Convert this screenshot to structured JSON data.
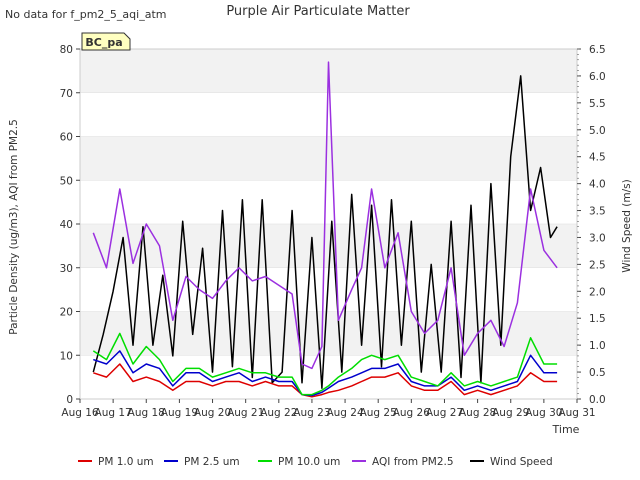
{
  "header": {
    "no_data_note": "No data for f_pm2_5_aqi_atm"
  },
  "chart_data": {
    "type": "line",
    "title": "Purple Air Particulate Matter",
    "xlabel": "Time",
    "ylabel": "Particle Density (ug/m3), AQI from PM2.5",
    "y2label": "Wind Speed (m/s)",
    "site_label": "BC_pa",
    "x_ticks": [
      "Aug 16",
      "Aug 17",
      "Aug 18",
      "Aug 19",
      "Aug 20",
      "Aug 21",
      "Aug 22",
      "Aug 23",
      "Aug 24",
      "Aug 25",
      "Aug 26",
      "Aug 27",
      "Aug 28",
      "Aug 29",
      "Aug 30",
      "Aug 31"
    ],
    "xlim": [
      0,
      15
    ],
    "ylim": [
      0,
      80
    ],
    "y_ticks": [
      "0",
      "10",
      "20",
      "30",
      "40",
      "50",
      "60",
      "70",
      "80"
    ],
    "y2lim": [
      0,
      6.5
    ],
    "y2_ticks": [
      "0.0",
      "0.5",
      "1.0",
      "1.5",
      "2.0",
      "2.5",
      "3.0",
      "3.5",
      "4.0",
      "4.5",
      "5.0",
      "5.5",
      "6.0",
      "6.5"
    ],
    "grid": "horizontal bands",
    "legend_position": "bottom",
    "series": [
      {
        "name": "PM 1.0 um",
        "color": "#dd0000",
        "axis": "left",
        "x": [
          0.4,
          0.8,
          1.2,
          1.6,
          2.0,
          2.4,
          2.8,
          3.2,
          3.6,
          4.0,
          4.4,
          4.8,
          5.2,
          5.6,
          6.0,
          6.4,
          6.7,
          7.0,
          7.3,
          7.5,
          7.8,
          8.2,
          8.5,
          8.8,
          9.2,
          9.6,
          10.0,
          10.4,
          10.8,
          11.2,
          11.6,
          12.0,
          12.4,
          12.8,
          13.2,
          13.6,
          14.0,
          14.4
        ],
        "y": [
          6,
          5,
          8,
          4,
          5,
          4,
          2,
          4,
          4,
          3,
          4,
          4,
          3,
          4,
          3,
          3,
          1,
          0.5,
          1,
          1.5,
          2,
          3,
          4,
          5,
          5,
          6,
          3,
          2,
          2,
          4,
          1,
          2,
          1,
          2,
          3,
          6,
          4,
          4
        ]
      },
      {
        "name": "PM 2.5 um",
        "color": "#0000cc",
        "axis": "left",
        "x": [
          0.4,
          0.8,
          1.2,
          1.6,
          2.0,
          2.4,
          2.8,
          3.2,
          3.6,
          4.0,
          4.4,
          4.8,
          5.2,
          5.6,
          6.0,
          6.4,
          6.7,
          7.0,
          7.3,
          7.5,
          7.8,
          8.2,
          8.5,
          8.8,
          9.2,
          9.6,
          10.0,
          10.4,
          10.8,
          11.2,
          11.6,
          12.0,
          12.4,
          12.8,
          13.2,
          13.6,
          14.0,
          14.4
        ],
        "y": [
          9,
          8,
          11,
          6,
          8,
          7,
          3,
          6,
          6,
          4,
          5,
          6,
          4,
          5,
          4,
          4,
          1,
          0.8,
          1.5,
          2.5,
          4,
          5,
          6,
          7,
          7,
          8,
          4,
          3,
          3,
          5,
          2,
          3,
          2,
          3,
          4,
          10,
          6,
          6
        ]
      },
      {
        "name": "PM 10.0 um",
        "color": "#00dd00",
        "axis": "left",
        "x": [
          0.4,
          0.8,
          1.2,
          1.6,
          2.0,
          2.4,
          2.8,
          3.2,
          3.6,
          4.0,
          4.4,
          4.8,
          5.2,
          5.6,
          6.0,
          6.4,
          6.7,
          7.0,
          7.3,
          7.5,
          7.8,
          8.2,
          8.5,
          8.8,
          9.2,
          9.6,
          10.0,
          10.4,
          10.8,
          11.2,
          11.6,
          12.0,
          12.4,
          12.8,
          13.2,
          13.6,
          14.0,
          14.4
        ],
        "y": [
          11,
          9,
          15,
          8,
          12,
          9,
          4,
          7,
          7,
          5,
          6,
          7,
          6,
          6,
          5,
          5,
          1,
          1,
          2,
          3,
          5,
          7,
          9,
          10,
          9,
          10,
          5,
          4,
          3,
          6,
          3,
          4,
          3,
          4,
          5,
          14,
          8,
          8
        ]
      },
      {
        "name": "AQI from PM2.5",
        "color": "#9b30e0",
        "axis": "left",
        "x": [
          0.4,
          0.8,
          1.2,
          1.6,
          2.0,
          2.4,
          2.8,
          3.2,
          3.6,
          4.0,
          4.4,
          4.8,
          5.2,
          5.6,
          6.0,
          6.4,
          6.7,
          7.0,
          7.3,
          7.5,
          7.8,
          8.2,
          8.5,
          8.8,
          9.2,
          9.6,
          10.0,
          10.4,
          10.8,
          11.2,
          11.6,
          12.0,
          12.4,
          12.8,
          13.2,
          13.6,
          14.0,
          14.4
        ],
        "y": [
          38,
          30,
          48,
          31,
          40,
          35,
          18,
          28,
          25,
          23,
          27,
          30,
          27,
          28,
          26,
          24,
          8,
          7,
          12,
          77,
          18,
          25,
          30,
          48,
          30,
          38,
          20,
          15,
          18,
          30,
          10,
          15,
          18,
          12,
          22,
          48,
          34,
          30
        ]
      },
      {
        "name": "Wind Speed",
        "color": "#000000",
        "axis": "right",
        "x": [
          0.4,
          0.7,
          1.0,
          1.3,
          1.6,
          1.9,
          2.2,
          2.5,
          2.8,
          3.1,
          3.4,
          3.7,
          4.0,
          4.3,
          4.6,
          4.9,
          5.2,
          5.5,
          5.8,
          6.1,
          6.4,
          6.7,
          7.0,
          7.3,
          7.6,
          7.9,
          8.2,
          8.5,
          8.8,
          9.1,
          9.4,
          9.7,
          10.0,
          10.3,
          10.6,
          10.9,
          11.2,
          11.5,
          11.8,
          12.1,
          12.4,
          12.7,
          13.0,
          13.3,
          13.6,
          13.9,
          14.2,
          14.4
        ],
        "y": [
          0.5,
          1.2,
          2.0,
          3.0,
          1.0,
          3.2,
          1.0,
          2.3,
          0.8,
          3.3,
          1.2,
          2.8,
          0.5,
          3.5,
          0.6,
          3.7,
          0.4,
          3.7,
          0.3,
          0.5,
          3.5,
          0.3,
          3.0,
          0.2,
          3.3,
          0.5,
          3.8,
          1.0,
          3.6,
          0.6,
          3.7,
          1.0,
          3.3,
          0.5,
          2.5,
          0.5,
          3.3,
          0.4,
          3.6,
          0.3,
          4.0,
          1.0,
          4.5,
          6.0,
          3.5,
          4.3,
          3.0,
          3.2
        ]
      }
    ]
  }
}
